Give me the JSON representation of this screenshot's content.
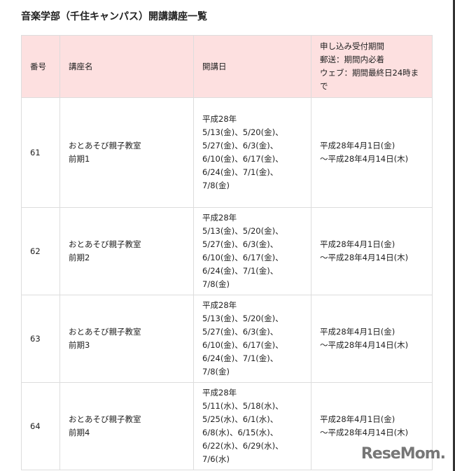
{
  "title": "音楽学部（千住キャンパス）開講講座一覧",
  "headers": {
    "number": "番号",
    "name": "講座名",
    "dates": "開講日",
    "period": [
      "申し込み受付期間",
      "郵送：期間内必着",
      "ウェブ：期間最終日24時ま",
      "で"
    ]
  },
  "rows": [
    {
      "number": "61",
      "name": [
        "おとあそび親子教室",
        "前期1"
      ],
      "dates": [
        "平成28年",
        "5/13(金)、5/20(金)、",
        "5/27(金)、6/3(金)、",
        "6/10(金)、6/17(金)、",
        "6/24(金)、7/1(金)、",
        "7/8(金)"
      ],
      "period": [
        "平成28年4月1日(金)",
        "～平成28年4月14日(木)"
      ]
    },
    {
      "number": "62",
      "name": [
        "おとあそび親子教室",
        "前期2"
      ],
      "dates": [
        "平成28年",
        "5/13(金)、5/20(金)、",
        "5/27(金)、6/3(金)、",
        "6/10(金)、6/17(金)、",
        "6/24(金)、7/1(金)、",
        "7/8(金)"
      ],
      "period": [
        "平成28年4月1日(金)",
        "～平成28年4月14日(木)"
      ]
    },
    {
      "number": "63",
      "name": [
        "おとあそび親子教室",
        "前期3"
      ],
      "dates": [
        "平成28年",
        "5/13(金)、5/20(金)、",
        "5/27(金)、6/3(金)、",
        "6/10(金)、6/17(金)、",
        "6/24(金)、7/1(金)、",
        "7/8(金)"
      ],
      "period": [
        "平成28年4月1日(金)",
        "～平成28年4月14日(木)"
      ]
    },
    {
      "number": "64",
      "name": [
        "おとあそび親子教室",
        "前期4"
      ],
      "dates": [
        "平成28年",
        "5/11(水)、5/18(水)、",
        "5/25(水)、6/1(水)、",
        "6/8(水)、6/15(水)、",
        "6/22(水)、6/29(水)、",
        "7/6(水)"
      ],
      "period": [
        "平成28年4月1日(金)",
        "～平成28年4月14日(木)"
      ]
    }
  ],
  "watermark": "ReseMom"
}
